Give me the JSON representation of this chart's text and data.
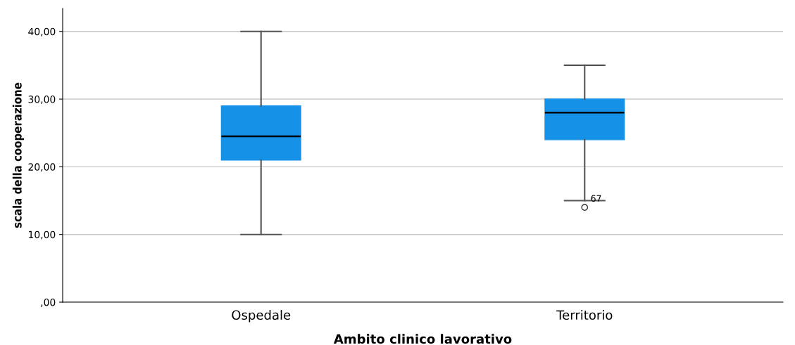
{
  "chart_data": {
    "type": "box",
    "xlabel": "Ambito clinico lavorativo",
    "ylabel": "scala della cooperazione",
    "categories": [
      "Ospedale",
      "Territorio"
    ],
    "boxes": [
      {
        "low": 10,
        "q1": 21,
        "median": 24.5,
        "q3": 29,
        "high": 40
      },
      {
        "low": 15,
        "q1": 24,
        "median": 28,
        "q3": 30,
        "high": 35,
        "outliers": [
          14
        ]
      }
    ],
    "color": "#1591e8",
    "ylim": [
      0,
      43.4
    ],
    "yticks": [
      {
        "value": 0,
        "label": ",00"
      },
      {
        "value": 10,
        "label": "10,00"
      },
      {
        "value": 20,
        "label": "20,00"
      },
      {
        "value": 30,
        "label": "30,00"
      },
      {
        "value": 40,
        "label": "40,00"
      }
    ],
    "grid": "y",
    "annotations": [
      "67"
    ]
  }
}
